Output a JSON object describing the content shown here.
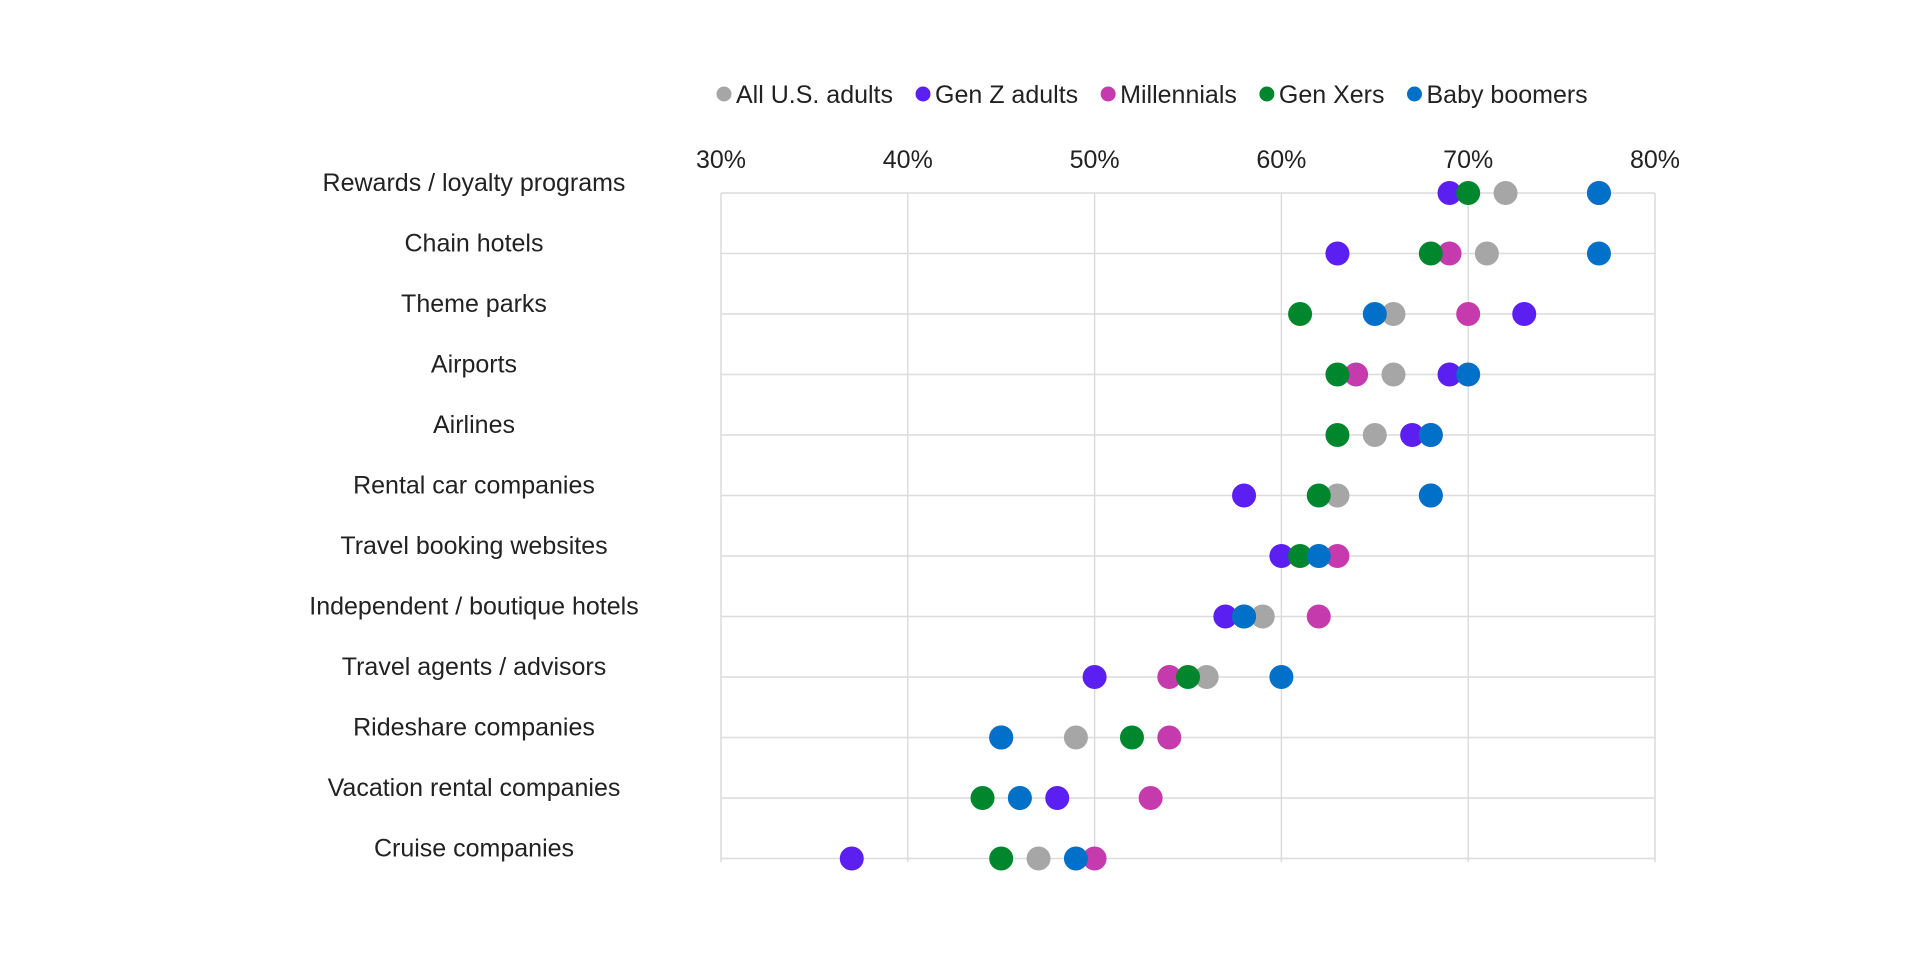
{
  "chart_data": {
    "type": "scatter",
    "orientation": "horizontal-dot-plot",
    "title": "",
    "xlabel": "",
    "ylabel": "",
    "xlim": [
      30,
      80
    ],
    "x_ticks": [
      30,
      40,
      50,
      60,
      70,
      80
    ],
    "x_tick_labels": [
      "30%",
      "40%",
      "50%",
      "60%",
      "70%",
      "80%"
    ],
    "grid": true,
    "legend_position": "top",
    "categories": [
      "Rewards / loyalty programs",
      "Chain hotels",
      "Theme parks",
      "Airports",
      "Airlines",
      "Rental car companies",
      "Travel booking websites",
      "Independent / boutique hotels",
      "Travel agents / advisors",
      "Rideshare companies",
      "Vacation rental companies",
      "Cruise companies"
    ],
    "series": [
      {
        "name": "All U.S. adults",
        "color": "#a6a6a6",
        "values": [
          72,
          71,
          66,
          66,
          65,
          63,
          62,
          59,
          56,
          49,
          46,
          47
        ]
      },
      {
        "name": "Gen Z adults",
        "color": "#5b1ff2",
        "values": [
          69,
          63,
          73,
          69,
          67,
          58,
          60,
          57,
          50,
          45,
          48,
          37
        ]
      },
      {
        "name": "Millennials",
        "color": "#c53aad",
        "values": [
          77,
          69,
          70,
          64,
          68,
          68,
          63,
          62,
          54,
          54,
          53,
          50
        ]
      },
      {
        "name": "Gen Xers",
        "color": "#00872e",
        "values": [
          70,
          68,
          61,
          63,
          63,
          62,
          61,
          58,
          55,
          52,
          44,
          45
        ]
      },
      {
        "name": "Baby boomers",
        "color": "#0070c9",
        "values": [
          77,
          77,
          65,
          70,
          68,
          68,
          62,
          58,
          60,
          45,
          46,
          49
        ]
      }
    ]
  }
}
